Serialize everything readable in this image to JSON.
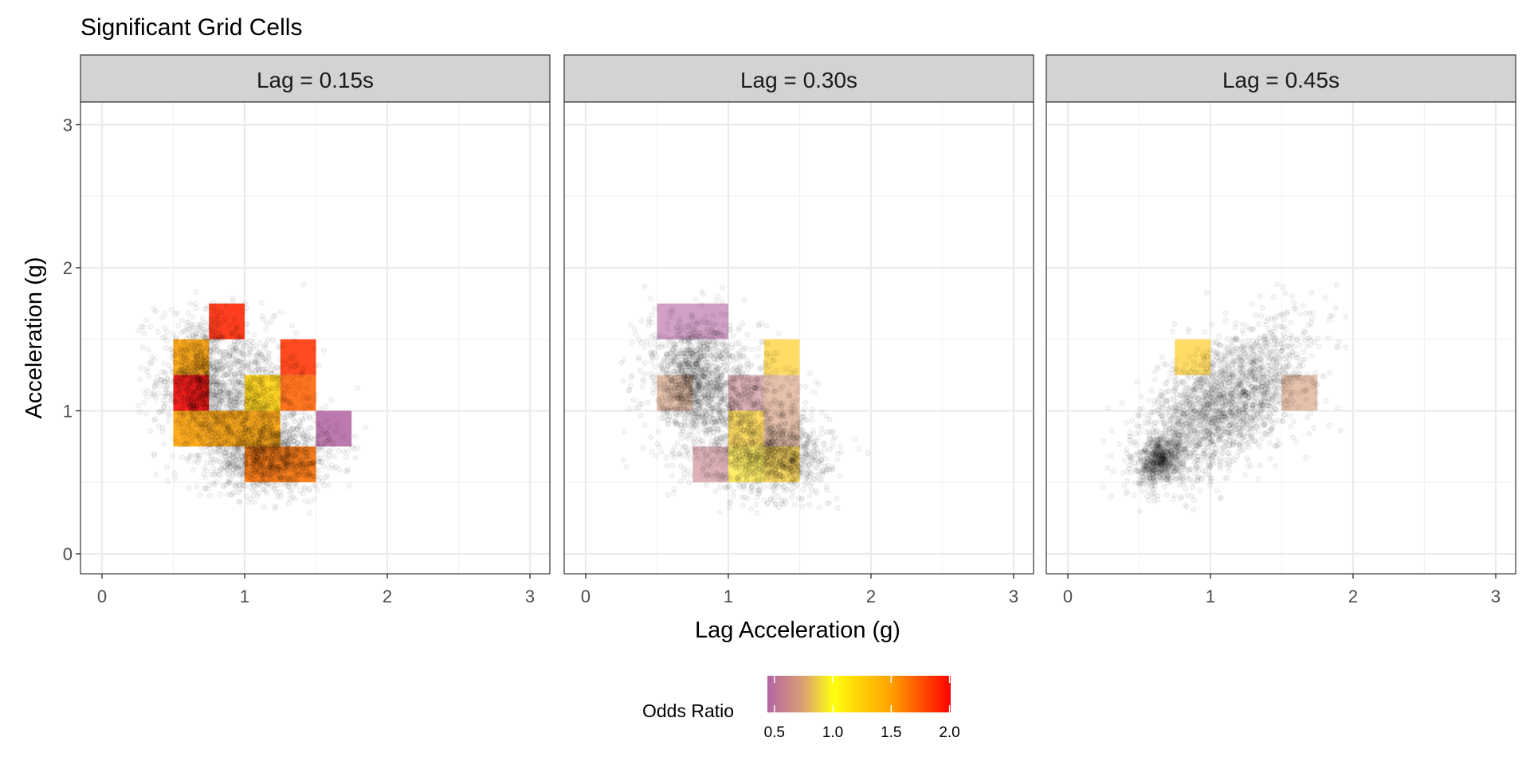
{
  "chart_data": {
    "type": "heatmap",
    "title": "Significant Grid Cells",
    "xlabel": "Lag Acceleration (g)",
    "ylabel": "Acceleration (g)",
    "xlim": [
      -0.15,
      3.15
    ],
    "ylim": [
      -0.15,
      3.16
    ],
    "x_ticks": [
      "0",
      "1",
      "2",
      "3"
    ],
    "y_ticks": [
      "0",
      "1",
      "2",
      "3"
    ],
    "grid": true,
    "cell_size": 0.25,
    "legend": {
      "title": "Odds Ratio",
      "placement": "bottom",
      "range": [
        0.44,
        2.01
      ],
      "ticks": [
        "0.5",
        "1.0",
        "1.5",
        "2.0"
      ],
      "tick_values": [
        0.5,
        1.0,
        1.5,
        2.0
      ],
      "color_stops": [
        {
          "value": 0.44,
          "color": "#b264a4"
        },
        {
          "value": 0.75,
          "color": "#d9a072"
        },
        {
          "value": 1.0,
          "color": "#ffff10"
        },
        {
          "value": 1.5,
          "color": "#ffa000"
        },
        {
          "value": 2.01,
          "color": "#ff0000"
        }
      ]
    },
    "panels": [
      {
        "label": "Lag = 0.15s",
        "cells": [
          {
            "x": 0.75,
            "y": 1.5,
            "odds_ratio": 1.9
          },
          {
            "x": 0.5,
            "y": 1.25,
            "odds_ratio": 1.5
          },
          {
            "x": 0.5,
            "y": 1.0,
            "odds_ratio": 2.0
          },
          {
            "x": 1.0,
            "y": 1.0,
            "odds_ratio": 1.25
          },
          {
            "x": 1.25,
            "y": 1.25,
            "odds_ratio": 1.85
          },
          {
            "x": 1.25,
            "y": 1.0,
            "odds_ratio": 1.7
          },
          {
            "x": 0.5,
            "y": 0.75,
            "odds_ratio": 1.5
          },
          {
            "x": 0.75,
            "y": 0.75,
            "odds_ratio": 1.5
          },
          {
            "x": 1.0,
            "y": 0.75,
            "odds_ratio": 1.5
          },
          {
            "x": 1.5,
            "y": 0.75,
            "odds_ratio": 0.45
          },
          {
            "x": 1.0,
            "y": 0.5,
            "odds_ratio": 1.65
          },
          {
            "x": 1.25,
            "y": 0.5,
            "odds_ratio": 1.65
          }
        ],
        "point_cloud": [
          {
            "n": 1500,
            "mean": [
              0.95,
              1.05
            ],
            "sd": [
              0.28,
              0.3
            ],
            "rho": -0.3
          },
          {
            "n": 800,
            "mean": [
              1.2,
              0.68
            ],
            "sd": [
              0.2,
              0.12
            ],
            "rho": 0
          },
          {
            "n": 600,
            "mean": [
              0.7,
              1.2
            ],
            "sd": [
              0.12,
              0.2
            ],
            "rho": 0
          }
        ]
      },
      {
        "label": "Lag = 0.30s",
        "cells": [
          {
            "x": 0.5,
            "y": 1.5,
            "odds_ratio": 0.45
          },
          {
            "x": 0.75,
            "y": 1.5,
            "odds_ratio": 0.45
          },
          {
            "x": 0.5,
            "y": 1.0,
            "odds_ratio": 0.72
          },
          {
            "x": 1.0,
            "y": 1.0,
            "odds_ratio": 0.6
          },
          {
            "x": 1.25,
            "y": 1.25,
            "odds_ratio": 1.3
          },
          {
            "x": 1.25,
            "y": 1.0,
            "odds_ratio": 0.72
          },
          {
            "x": 1.0,
            "y": 0.75,
            "odds_ratio": 1.3
          },
          {
            "x": 1.25,
            "y": 0.75,
            "odds_ratio": 0.72
          },
          {
            "x": 0.75,
            "y": 0.5,
            "odds_ratio": 0.6
          },
          {
            "x": 1.0,
            "y": 0.5,
            "odds_ratio": 1.15
          },
          {
            "x": 1.25,
            "y": 0.5,
            "odds_ratio": 1.3
          }
        ],
        "point_cloud": [
          {
            "n": 1400,
            "mean": [
              1.0,
              1.0
            ],
            "sd": [
              0.3,
              0.3
            ],
            "rho": -0.4
          },
          {
            "n": 700,
            "mean": [
              1.35,
              0.68
            ],
            "sd": [
              0.18,
              0.12
            ],
            "rho": 0
          },
          {
            "n": 700,
            "mean": [
              0.75,
              1.25
            ],
            "sd": [
              0.12,
              0.18
            ],
            "rho": 0
          }
        ]
      },
      {
        "label": "Lag = 0.45s",
        "cells": [
          {
            "x": 0.75,
            "y": 1.25,
            "odds_ratio": 1.3
          },
          {
            "x": 1.5,
            "y": 1.0,
            "odds_ratio": 0.72
          }
        ],
        "point_cloud": [
          {
            "n": 2200,
            "mean": [
              1.1,
              1.05
            ],
            "sd": [
              0.3,
              0.28
            ],
            "rho": 0.6
          },
          {
            "n": 600,
            "mean": [
              0.65,
              0.65
            ],
            "sd": [
              0.08,
              0.08
            ],
            "rho": 0.3
          }
        ]
      }
    ]
  }
}
